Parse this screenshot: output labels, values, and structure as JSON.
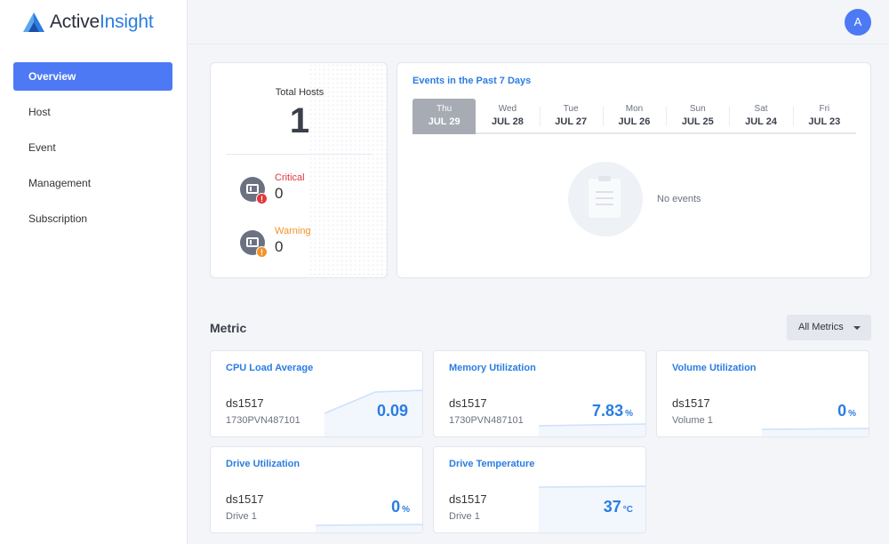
{
  "brand": {
    "part1": "Active",
    "part2": "Insight"
  },
  "sidebar": {
    "items": [
      {
        "label": "Overview",
        "active": true
      },
      {
        "label": "Host"
      },
      {
        "label": "Event"
      },
      {
        "label": "Management"
      },
      {
        "label": "Subscription"
      }
    ]
  },
  "topbar": {
    "avatar_letter": "A"
  },
  "hosts": {
    "total_label": "Total Hosts",
    "total_value": "1",
    "critical": {
      "label": "Critical",
      "value": "0",
      "color": "#e0393e"
    },
    "warning": {
      "label": "Warning",
      "value": "0",
      "color": "#f0932b"
    }
  },
  "events": {
    "title": "Events in the Past 7 Days",
    "days": [
      {
        "name": "Thu",
        "date": "JUL 29",
        "active": true
      },
      {
        "name": "Wed",
        "date": "JUL 28"
      },
      {
        "name": "Tue",
        "date": "JUL 27"
      },
      {
        "name": "Mon",
        "date": "JUL 26"
      },
      {
        "name": "Sun",
        "date": "JUL 25"
      },
      {
        "name": "Sat",
        "date": "JUL 24"
      },
      {
        "name": "Fri",
        "date": "JUL 23"
      }
    ],
    "empty_text": "No events"
  },
  "metric": {
    "title": "Metric",
    "filter_label": "All Metrics",
    "cards": [
      {
        "title": "CPU Load Average",
        "host": "ds1517",
        "sub": "1730PVN487101",
        "value": "0.09",
        "unit": ""
      },
      {
        "title": "Memory Utilization",
        "host": "ds1517",
        "sub": "1730PVN487101",
        "value": "7.83",
        "unit": "%"
      },
      {
        "title": "Volume Utilization",
        "host": "ds1517",
        "sub": "Volume 1",
        "value": "0",
        "unit": "%"
      },
      {
        "title": "Drive Utilization",
        "host": "ds1517",
        "sub": "Drive 1",
        "value": "0",
        "unit": "%"
      },
      {
        "title": "Drive Temperature",
        "host": "ds1517",
        "sub": "Drive 1",
        "value": "37",
        "unit": "°C"
      }
    ]
  },
  "colors": {
    "accent": "#4e79f5",
    "link": "#2a7de1"
  }
}
